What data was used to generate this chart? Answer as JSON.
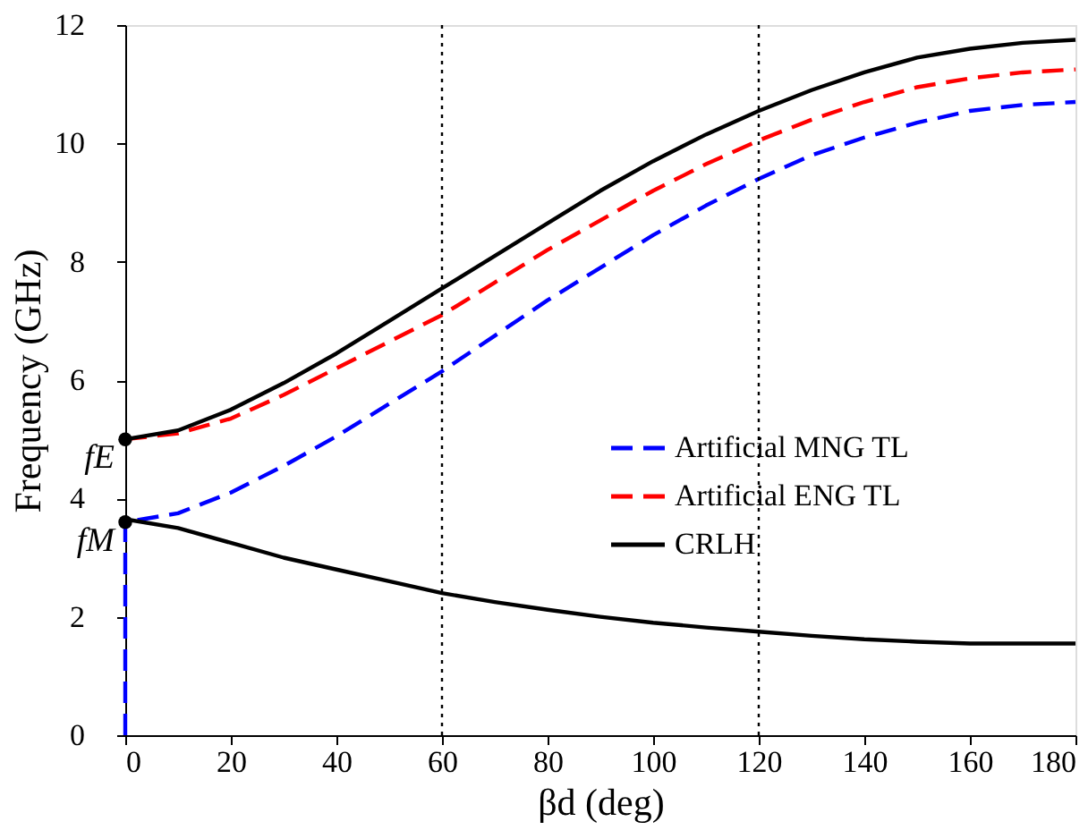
{
  "chart_data": {
    "type": "line",
    "xlabel": "βd (deg)",
    "ylabel": "Frequency (GHz)",
    "xlim": [
      0,
      180
    ],
    "xticks": [
      0,
      20,
      40,
      60,
      80,
      100,
      120,
      140,
      160,
      180
    ],
    "ylim": [
      0,
      12
    ],
    "yticks": [
      0,
      2,
      4,
      6,
      8,
      10,
      12
    ],
    "grid": false,
    "legend": "right",
    "marker": "none",
    "series": [
      {
        "name": "Artificial MNG TL",
        "color": "#0000ff",
        "line_style": "dashed",
        "x": [
          0,
          0,
          10,
          20,
          30,
          40,
          50,
          60,
          70,
          80,
          90,
          100,
          110,
          120,
          130,
          140,
          150,
          160,
          170,
          180
        ],
        "values": [
          0,
          3.6,
          3.75,
          4.1,
          4.55,
          5.05,
          5.6,
          6.15,
          6.75,
          7.35,
          7.9,
          8.45,
          8.95,
          9.4,
          9.8,
          10.1,
          10.35,
          10.55,
          10.65,
          10.7
        ]
      },
      {
        "name": "Artificial ENG TL",
        "color": "#ff0000",
        "line_style": "dashed",
        "x": [
          0,
          10,
          20,
          30,
          40,
          50,
          60,
          70,
          80,
          90,
          100,
          110,
          120,
          130,
          140,
          150,
          160,
          170,
          180
        ],
        "values": [
          5.0,
          5.1,
          5.35,
          5.75,
          6.2,
          6.65,
          7.1,
          7.65,
          8.2,
          8.7,
          9.2,
          9.65,
          10.05,
          10.4,
          10.7,
          10.95,
          11.1,
          11.2,
          11.25
        ]
      },
      {
        "name": "CRLH",
        "color": "#000000",
        "line_style": "solid",
        "x": [
          0,
          10,
          20,
          30,
          40,
          50,
          60,
          70,
          80,
          90,
          100,
          110,
          120,
          130,
          140,
          150,
          160,
          170,
          180
        ],
        "values": [
          5.0,
          5.15,
          5.5,
          5.95,
          6.45,
          7.0,
          7.55,
          8.1,
          8.65,
          9.2,
          9.7,
          10.15,
          10.55,
          10.9,
          11.2,
          11.45,
          11.6,
          11.7,
          11.75
        ]
      },
      {
        "color": "#000000",
        "line_style": "solid",
        "x": [
          0,
          10,
          20,
          30,
          40,
          50,
          60,
          70,
          80,
          90,
          100,
          110,
          120,
          130,
          140,
          150,
          160,
          170,
          180
        ],
        "values": [
          3.65,
          3.5,
          3.25,
          3.0,
          2.8,
          2.6,
          2.4,
          2.25,
          2.12,
          2.0,
          1.9,
          1.82,
          1.75,
          1.68,
          1.62,
          1.58,
          1.55,
          1.55,
          1.55
        ]
      },
      {
        "type": "scatter",
        "marker": "circle",
        "color": "#000000",
        "x": [
          0,
          0
        ],
        "values": [
          5.0,
          3.6
        ]
      }
    ],
    "ref_lines": [
      {
        "axis": "x",
        "value": 60,
        "color": "#000000",
        "line_style": "dotted"
      },
      {
        "axis": "x",
        "value": 120,
        "color": "#000000",
        "line_style": "dotted"
      }
    ],
    "annotations": [
      {
        "text": "fE",
        "x": 0,
        "y": 5.0
      },
      {
        "text": "fM",
        "x": 0,
        "y": 3.6
      }
    ]
  }
}
